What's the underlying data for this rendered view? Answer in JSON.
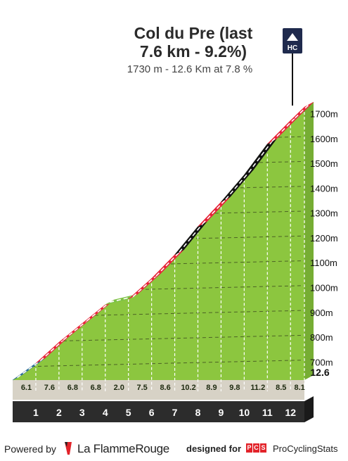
{
  "header": {
    "title_line1": "Col du Pre (last",
    "title_line2": "7.6 km - 9.2%)",
    "subtitle": "1730 m - 12.6 Km at 7.8 %",
    "category_badge": "HC"
  },
  "chart_data": {
    "type": "area",
    "title": "Col du Pre (last 7.6 km - 9.2%)",
    "subtitle": "1730 m - 12.6 Km at 7.8 %",
    "xlabel": "",
    "ylabel": "",
    "x_unit": "km",
    "y_unit": "m",
    "xlim": [
      0,
      12.6
    ],
    "ylim": [
      630,
      1730
    ],
    "grid": true,
    "y_tick_labels": [
      "700m",
      "800m",
      "900m",
      "1000m",
      "1100m",
      "1200m",
      "1300m",
      "1400m",
      "1500m",
      "1600m",
      "1700m"
    ],
    "y_ticks": [
      700,
      800,
      900,
      1000,
      1100,
      1200,
      1300,
      1400,
      1500,
      1600,
      1700
    ],
    "x_tick_labels": [
      "1",
      "2",
      "3",
      "4",
      "5",
      "6",
      "7",
      "8",
      "9",
      "10",
      "11",
      "12",
      "12.6"
    ],
    "x_ticks": [
      1,
      2,
      3,
      4,
      5,
      6,
      7,
      8,
      9,
      10,
      11,
      12,
      12.6
    ],
    "km_segments": [
      {
        "km": "1",
        "gradient": "6.1",
        "grad_value": 6.1,
        "color": "#2b6d99"
      },
      {
        "km": "2",
        "gradient": "7.6",
        "grad_value": 7.6,
        "color": "#e8233a"
      },
      {
        "km": "3",
        "gradient": "6.8",
        "grad_value": 6.8,
        "color": "#e8233a"
      },
      {
        "km": "4",
        "gradient": "6.8",
        "grad_value": 6.8,
        "color": "#e8233a"
      },
      {
        "km": "5",
        "gradient": "2.0",
        "grad_value": 2.0,
        "color": "#7cc242"
      },
      {
        "km": "6",
        "gradient": "7.5",
        "grad_value": 7.5,
        "color": "#e8233a"
      },
      {
        "km": "7",
        "gradient": "8.6",
        "grad_value": 8.6,
        "color": "#e8233a"
      },
      {
        "km": "8",
        "gradient": "10.2",
        "grad_value": 10.2,
        "color": "#111111"
      },
      {
        "km": "9",
        "gradient": "8.9",
        "grad_value": 8.9,
        "color": "#e8233a"
      },
      {
        "km": "10",
        "gradient": "9.8",
        "grad_value": 9.8,
        "color": "#111111"
      },
      {
        "km": "11",
        "gradient": "11.2",
        "grad_value": 11.2,
        "color": "#111111"
      },
      {
        "km": "12",
        "gradient": "8.5",
        "grad_value": 8.5,
        "color": "#e8233a"
      },
      {
        "km": "12.6",
        "gradient": "8.1",
        "grad_value": 8.1,
        "color": "#e8233a"
      }
    ],
    "colors": {
      "fill": "#8cc63f",
      "base": "#d7d2c6",
      "axis_band": "#2c2c2c",
      "red": "#e8233a",
      "black": "#111111",
      "blue": "#2b6d99",
      "green_road": "#7cc242"
    }
  },
  "footer": {
    "powered_by": "Powered by",
    "flamme_rouge": "La FlammeRouge",
    "designed_for": "designed for",
    "pcs_logo_letters": [
      "P",
      "C",
      "S"
    ],
    "procyclingstats": "ProCyclingStats"
  }
}
